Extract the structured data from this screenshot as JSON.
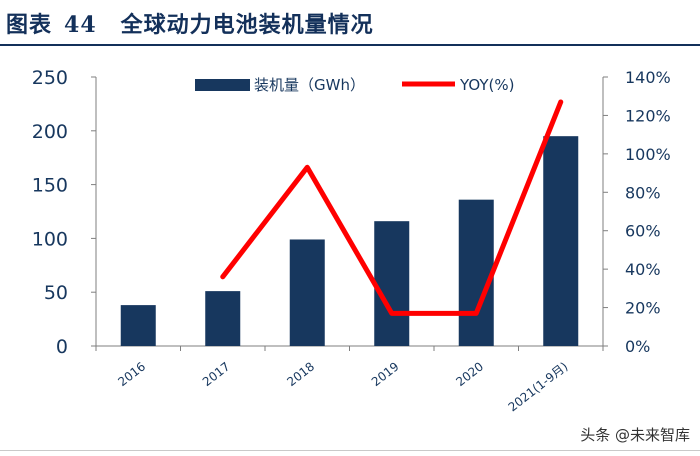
{
  "header": {
    "figure_label": "图表",
    "figure_number": "44",
    "title": "全球动力电池装机量情况"
  },
  "watermark": "头条 @未来智库",
  "colors": {
    "bar": "#17375e",
    "line": "#ff0000",
    "title": "#13305a",
    "axis": "#7f7f7f"
  },
  "chart_data": {
    "type": "bar",
    "categories": [
      "2016",
      "2017",
      "2018",
      "2019",
      "2020",
      "2021(1-9月)"
    ],
    "series": [
      {
        "name": "装机量（GWh）",
        "type": "bar",
        "axis": "left",
        "values": [
          38,
          51,
          99,
          116,
          136,
          195
        ]
      },
      {
        "name": "YOY(%)",
        "type": "line",
        "axis": "right",
        "values": [
          null,
          36,
          93,
          17,
          17,
          127
        ]
      }
    ],
    "y_left": {
      "ylim": [
        0,
        250
      ],
      "ticks": [
        0,
        50,
        100,
        150,
        200,
        250
      ]
    },
    "y_right": {
      "ylim": [
        0,
        140
      ],
      "ticks": [
        "0%",
        "20%",
        "40%",
        "60%",
        "80%",
        "100%",
        "120%",
        "140%"
      ]
    },
    "legend_position": "top-center",
    "grid": false
  }
}
